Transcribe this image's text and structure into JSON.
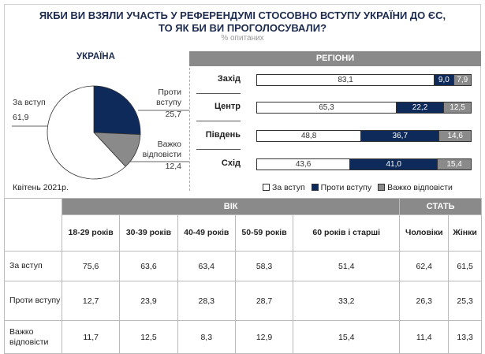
{
  "title_line1": "ЯКБИ ВИ ВЗЯЛИ УЧАСТЬ У РЕФЕРЕНДУМІ СТОСОВНО ВСТУПУ УКРАЇНИ ДО ЄС,",
  "title_line2": "ТО ЯК БИ ВИ ПРОГОЛОСУВАЛИ?",
  "subtitle": "% опитаних",
  "date": "Квітень 2021р.",
  "colors": {
    "for": "#ffffff",
    "against": "#0e2a5a",
    "hard": "#8a8a8a"
  },
  "chart_data": [
    {
      "type": "pie",
      "title": "УКРАЇНА",
      "slices": [
        {
          "label": "Проти вступу",
          "label_lines": [
            "Проти",
            "вступу"
          ],
          "value": 25.7,
          "value_text": "25,7",
          "color": "#0e2a5a"
        },
        {
          "label": "Важко відповісти",
          "label_lines": [
            "Важко",
            "відповісти"
          ],
          "value": 12.4,
          "value_text": "12,4",
          "color": "#8a8a8a"
        },
        {
          "label": "За вступ",
          "label_lines": [
            "За вступ"
          ],
          "value": 61.9,
          "value_text": "61,9",
          "color": "#ffffff"
        }
      ]
    },
    {
      "type": "bar",
      "stacked": true,
      "horizontal": true,
      "title": "РЕГІОНИ",
      "categories": [
        "Захід",
        "Центр",
        "Південь",
        "Схід"
      ],
      "series": [
        {
          "name": "За вступ",
          "values": [
            83.1,
            65.3,
            48.8,
            43.6
          ],
          "labels": [
            "83,1",
            "65,3",
            "48,8",
            "43,6"
          ]
        },
        {
          "name": "Проти вступу",
          "values": [
            9.0,
            22.2,
            36.7,
            41.0
          ],
          "labels": [
            "9,0",
            "22,2",
            "36,7",
            "41,0"
          ]
        },
        {
          "name": "Важко відповісти",
          "values": [
            7.9,
            12.5,
            14.6,
            15.4
          ],
          "labels": [
            "7,9",
            "12,5",
            "14,6",
            "15,4"
          ]
        }
      ],
      "legend": "bottom"
    },
    {
      "type": "table",
      "group_headers": [
        {
          "label": "ВІК",
          "span": 5
        },
        {
          "label": "СТАТЬ",
          "span": 2
        }
      ],
      "columns": [
        "18-29 років",
        "30-39 років",
        "40-49 років",
        "50-59 років",
        "60 років і старші",
        "Чоловіки",
        "Жінки"
      ],
      "rows": [
        {
          "label": "За вступ",
          "values": [
            "75,6",
            "63,6",
            "63,4",
            "58,3",
            "51,4",
            "62,4",
            "61,5"
          ]
        },
        {
          "label": "Проти вступу",
          "values": [
            "12,7",
            "23,9",
            "28,3",
            "28,7",
            "33,2",
            "26,3",
            "25,3"
          ]
        },
        {
          "label": "Важко відповісти",
          "values": [
            "11,7",
            "12,5",
            "8,3",
            "12,9",
            "15,4",
            "11,4",
            "13,3"
          ]
        }
      ]
    }
  ]
}
